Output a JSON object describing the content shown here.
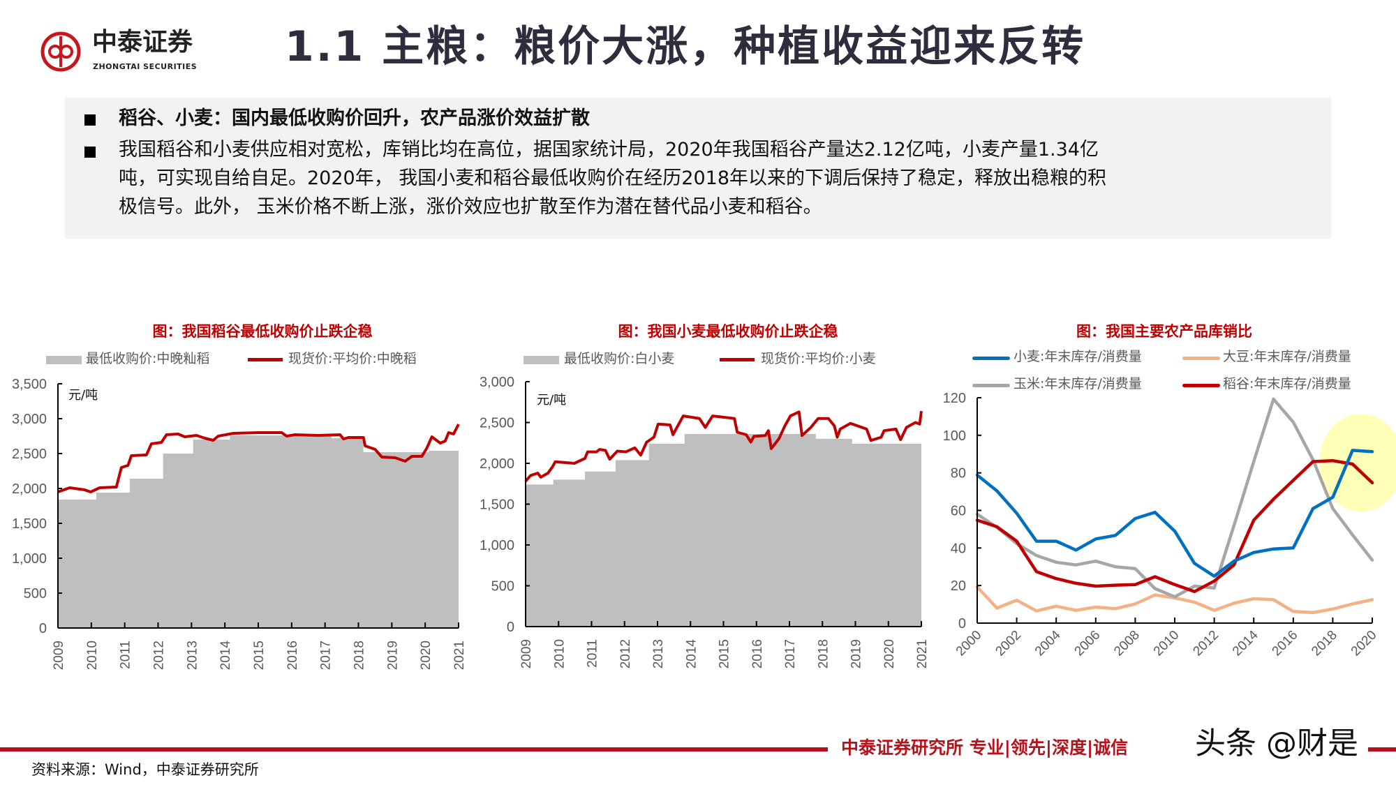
{
  "logo": {
    "name": "中泰证券",
    "sub": "ZHONGTAI SECURITIES",
    "color": "#c8161d"
  },
  "title": "1.1 主粮：粮价大涨，种植收益迎来反转",
  "summary": {
    "heading": "稻谷、小麦：国内最低收购价回升，农产品涨价效益扩散",
    "lines": [
      "我国稻谷和小麦供应相对宽松，库销比均在高位，据国家统计局，2020年我国稻谷产量达2.12亿吨，小麦产量1.34亿",
      "吨，可实现自给自足。2020年， 我国小麦和稻谷最低收购价在经历2018年以来的下调后保持了稳定，释放出稳粮的积",
      "极信号。此外， 玉米价格不断上涨，涨价效应也扩散至作为潜在替代品小麦和稻谷。"
    ]
  },
  "chart_data": [
    {
      "type": "area+line",
      "title": "图：我国稻谷最低收购价止跌企稳",
      "unit": "元/吨",
      "ylim": [
        0,
        3500
      ],
      "yticks": [
        "0",
        "500",
        "1,000",
        "1,500",
        "2,000",
        "2,500",
        "3,000",
        "3,500"
      ],
      "xlim": [
        2009,
        2021
      ],
      "xticks": [
        "2009",
        "2010",
        "2011",
        "2012",
        "2013",
        "2014",
        "2015",
        "2016",
        "2017",
        "2018",
        "2019",
        "2020",
        "2021"
      ],
      "series": [
        {
          "name": "最低收购价:中晚籼稻",
          "kind": "step-area",
          "color": "#bfbfbf",
          "points": [
            [
              2009.0,
              1840
            ],
            [
              2010.15,
              1940
            ],
            [
              2011.15,
              2140
            ],
            [
              2012.15,
              2500
            ],
            [
              2013.05,
              2700
            ],
            [
              2014.15,
              2760
            ],
            [
              2017.2,
              2720
            ],
            [
              2018.15,
              2520
            ],
            [
              2020.1,
              2540
            ],
            [
              2021.0,
              2540
            ]
          ]
        },
        {
          "name": "现货价:平均价:中晚稻",
          "kind": "line",
          "color": "#c00000",
          "points": [
            [
              2009.0,
              1950
            ],
            [
              2009.35,
              2010
            ],
            [
              2009.8,
              1980
            ],
            [
              2009.98,
              1950
            ],
            [
              2010.25,
              2010
            ],
            [
              2010.75,
              2020
            ],
            [
              2010.9,
              2300
            ],
            [
              2011.1,
              2330
            ],
            [
              2011.2,
              2470
            ],
            [
              2011.65,
              2480
            ],
            [
              2011.8,
              2640
            ],
            [
              2012.1,
              2660
            ],
            [
              2012.25,
              2770
            ],
            [
              2012.6,
              2780
            ],
            [
              2012.8,
              2740
            ],
            [
              2013.15,
              2760
            ],
            [
              2013.4,
              2720
            ],
            [
              2013.65,
              2690
            ],
            [
              2013.8,
              2750
            ],
            [
              2014.25,
              2790
            ],
            [
              2015.0,
              2800
            ],
            [
              2015.7,
              2800
            ],
            [
              2015.85,
              2750
            ],
            [
              2016.1,
              2770
            ],
            [
              2016.8,
              2760
            ],
            [
              2017.45,
              2770
            ],
            [
              2017.55,
              2710
            ],
            [
              2017.7,
              2730
            ],
            [
              2018.15,
              2730
            ],
            [
              2018.2,
              2610
            ],
            [
              2018.5,
              2560
            ],
            [
              2018.7,
              2450
            ],
            [
              2019.1,
              2440
            ],
            [
              2019.4,
              2390
            ],
            [
              2019.6,
              2460
            ],
            [
              2019.9,
              2460
            ],
            [
              2020.05,
              2580
            ],
            [
              2020.2,
              2740
            ],
            [
              2020.45,
              2650
            ],
            [
              2020.6,
              2680
            ],
            [
              2020.7,
              2800
            ],
            [
              2020.85,
              2780
            ],
            [
              2021.0,
              2920
            ]
          ]
        }
      ]
    },
    {
      "type": "area+line",
      "title": "图：我国小麦最低收购价止跌企稳",
      "unit": "元/吨",
      "ylim": [
        0,
        3000
      ],
      "yticks": [
        "0",
        "500",
        "1,000",
        "1,500",
        "2,000",
        "2,500",
        "3,000"
      ],
      "xlim": [
        2009,
        2021
      ],
      "xticks": [
        "2009",
        "2010",
        "2011",
        "2012",
        "2013",
        "2014",
        "2015",
        "2016",
        "2017",
        "2018",
        "2019",
        "2020",
        "2021"
      ],
      "series": [
        {
          "name": "最低收购价:白小麦",
          "kind": "step-area",
          "color": "#bfbfbf",
          "points": [
            [
              2009.0,
              1740
            ],
            [
              2009.84,
              1800
            ],
            [
              2010.8,
              1900
            ],
            [
              2011.73,
              2040
            ],
            [
              2012.74,
              2240
            ],
            [
              2013.82,
              2360
            ],
            [
              2017.8,
              2300
            ],
            [
              2018.9,
              2240
            ],
            [
              2021.0,
              2240
            ]
          ]
        },
        {
          "name": "现货价:平均价:小麦",
          "kind": "line",
          "color": "#c00000",
          "points": [
            [
              2009.0,
              1780
            ],
            [
              2009.15,
              1850
            ],
            [
              2009.37,
              1880
            ],
            [
              2009.46,
              1830
            ],
            [
              2009.68,
              1880
            ],
            [
              2009.82,
              1960
            ],
            [
              2009.9,
              2020
            ],
            [
              2010.48,
              2000
            ],
            [
              2010.8,
              2060
            ],
            [
              2010.88,
              2140
            ],
            [
              2011.15,
              2140
            ],
            [
              2011.24,
              2170
            ],
            [
              2011.42,
              2160
            ],
            [
              2011.55,
              2050
            ],
            [
              2011.78,
              2150
            ],
            [
              2012.04,
              2140
            ],
            [
              2012.31,
              2190
            ],
            [
              2012.49,
              2100
            ],
            [
              2012.67,
              2260
            ],
            [
              2012.89,
              2320
            ],
            [
              2013.02,
              2480
            ],
            [
              2013.38,
              2470
            ],
            [
              2013.47,
              2350
            ],
            [
              2013.56,
              2420
            ],
            [
              2013.78,
              2580
            ],
            [
              2014.27,
              2550
            ],
            [
              2014.45,
              2440
            ],
            [
              2014.67,
              2580
            ],
            [
              2015.33,
              2550
            ],
            [
              2015.42,
              2380
            ],
            [
              2015.69,
              2350
            ],
            [
              2015.83,
              2260
            ],
            [
              2015.92,
              2330
            ],
            [
              2016.27,
              2340
            ],
            [
              2016.36,
              2400
            ],
            [
              2016.45,
              2180
            ],
            [
              2016.68,
              2300
            ],
            [
              2016.85,
              2450
            ],
            [
              2017.03,
              2580
            ],
            [
              2017.29,
              2630
            ],
            [
              2017.38,
              2340
            ],
            [
              2017.65,
              2440
            ],
            [
              2017.87,
              2550
            ],
            [
              2018.18,
              2550
            ],
            [
              2018.36,
              2460
            ],
            [
              2018.45,
              2320
            ],
            [
              2018.54,
              2420
            ],
            [
              2018.85,
              2490
            ],
            [
              2019.34,
              2420
            ],
            [
              2019.47,
              2280
            ],
            [
              2019.78,
              2320
            ],
            [
              2019.87,
              2400
            ],
            [
              2020.23,
              2420
            ],
            [
              2020.37,
              2290
            ],
            [
              2020.55,
              2440
            ],
            [
              2020.82,
              2500
            ],
            [
              2020.95,
              2480
            ],
            [
              2021.0,
              2640
            ]
          ]
        }
      ]
    },
    {
      "type": "line",
      "title": "图：我国主要农产品库销比",
      "ylim": [
        0,
        120
      ],
      "yticks": [
        "0",
        "20",
        "40",
        "60",
        "80",
        "100",
        "120"
      ],
      "x": [
        2000,
        2001,
        2002,
        2003,
        2004,
        2005,
        2006,
        2007,
        2008,
        2009,
        2010,
        2011,
        2012,
        2013,
        2014,
        2015,
        2016,
        2017,
        2018,
        2019,
        2020
      ],
      "xticks": [
        "2000",
        "2002",
        "2004",
        "2006",
        "2008",
        "2010",
        "2012",
        "2014",
        "2016",
        "2018",
        "2020"
      ],
      "highlight": "2019-2020 circled in yellow",
      "series": [
        {
          "name": "小麦:年末库存/消费量",
          "color": "#0070c0",
          "values": [
            78.8,
            70.4,
            58.5,
            43.6,
            43.6,
            38.9,
            44.8,
            46.7,
            55.7,
            59,
            49,
            31.8,
            25,
            33,
            37.6,
            39.5,
            40,
            61,
            67,
            92,
            91.3
          ]
        },
        {
          "name": "大豆:年末库存/消费量",
          "color": "#f4b183",
          "values": [
            19.3,
            8,
            12.2,
            6.5,
            9,
            6.8,
            8.5,
            7.7,
            10.2,
            15,
            13.4,
            11.2,
            6.8,
            10.6,
            13,
            12.5,
            6.2,
            5.6,
            7.5,
            10.2,
            12.5
          ]
        },
        {
          "name": "玉米:年末库存/消费量",
          "color": "#a6a6a6",
          "values": [
            58,
            51,
            42.3,
            36,
            32.4,
            31,
            33,
            30,
            29,
            18.4,
            14,
            19.7,
            18.7,
            52,
            86,
            119.3,
            107,
            87,
            61,
            47,
            33.6
          ]
        },
        {
          "name": "稻谷:年末库存/消费量",
          "color": "#c00000",
          "values": [
            54.8,
            51.3,
            43.6,
            27.4,
            23.7,
            21.2,
            19.7,
            20.2,
            20.5,
            24.7,
            20.5,
            16.8,
            22.4,
            31,
            54.8,
            66,
            76,
            86,
            86.5,
            84.7,
            74.7
          ]
        }
      ]
    }
  ],
  "footer": {
    "slogan": "中泰证券研究所 专业|领先|深度|诚信",
    "watermark": "头条 @财是",
    "source": "资料来源：Wind，中泰证券研究所"
  }
}
